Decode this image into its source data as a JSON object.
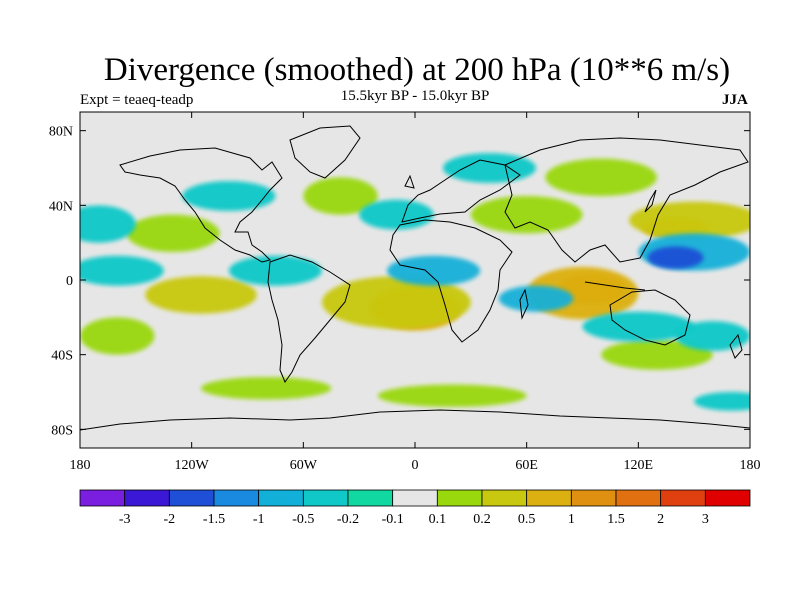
{
  "title": "Divergence (smoothed) at 200 hPa (10**6 m/s)",
  "experiment": "Expt = teaeq-teadp",
  "period": "15.5kyr BP - 15.0kyr BP",
  "season": "JJA",
  "map": {
    "projection": "cylindrical-equidistant",
    "lon_range": [
      -180,
      180
    ],
    "lat_range": [
      -90,
      90
    ],
    "x_ticks": [
      {
        "value": -180,
        "label": "180"
      },
      {
        "value": -120,
        "label": "120W"
      },
      {
        "value": -60,
        "label": "60W"
      },
      {
        "value": 0,
        "label": "0"
      },
      {
        "value": 60,
        "label": "60E"
      },
      {
        "value": 120,
        "label": "120E"
      },
      {
        "value": 180,
        "label": "180"
      }
    ],
    "y_ticks": [
      {
        "value": 80,
        "label": "80N"
      },
      {
        "value": 40,
        "label": "40N"
      },
      {
        "value": 0,
        "label": "0"
      },
      {
        "value": -40,
        "label": "40S"
      },
      {
        "value": -80,
        "label": "80S"
      }
    ],
    "background_color": "#e6e6e6",
    "coastline_color": "#000000",
    "field_regions": [
      {
        "lon": 95,
        "lat": -5,
        "rlon": 18,
        "rlat": 8,
        "level": 12
      },
      {
        "lon": 90,
        "lat": -7,
        "rlon": 30,
        "rlat": 14,
        "level": 10
      },
      {
        "lon": 0,
        "lat": -15,
        "rlon": 25,
        "rlat": 12,
        "level": 10
      },
      {
        "lon": -10,
        "lat": -12,
        "rlon": 40,
        "rlat": 14,
        "level": 9
      },
      {
        "lon": 140,
        "lat": 28,
        "rlon": 18,
        "rlat": 6,
        "level": 10
      },
      {
        "lon": 150,
        "lat": 32,
        "rlon": 35,
        "rlat": 10,
        "level": 9
      },
      {
        "lon": -115,
        "lat": -8,
        "rlon": 30,
        "rlat": 10,
        "level": 9
      },
      {
        "lon": 60,
        "lat": 35,
        "rlon": 30,
        "rlat": 10,
        "level": 8
      },
      {
        "lon": -130,
        "lat": 25,
        "rlon": 25,
        "rlat": 10,
        "level": 8
      },
      {
        "lon": 130,
        "lat": -40,
        "rlon": 30,
        "rlat": 8,
        "level": 8
      },
      {
        "lon": -80,
        "lat": -58,
        "rlon": 35,
        "rlat": 6,
        "level": 8
      },
      {
        "lon": 20,
        "lat": -62,
        "rlon": 40,
        "rlat": 6,
        "level": 8
      },
      {
        "lon": 100,
        "lat": 55,
        "rlon": 30,
        "rlat": 10,
        "level": 8
      },
      {
        "lon": -40,
        "lat": 45,
        "rlon": 20,
        "rlat": 10,
        "level": 8
      },
      {
        "lon": -160,
        "lat": -30,
        "rlon": 20,
        "rlat": 10,
        "level": 8
      },
      {
        "lon": 150,
        "lat": 15,
        "rlon": 30,
        "rlat": 10,
        "level": 4
      },
      {
        "lon": 140,
        "lat": 12,
        "rlon": 15,
        "rlat": 6,
        "level": 2
      },
      {
        "lon": 10,
        "lat": 5,
        "rlon": 25,
        "rlat": 8,
        "level": 4
      },
      {
        "lon": 65,
        "lat": -10,
        "rlon": 20,
        "rlat": 7,
        "level": 4
      },
      {
        "lon": -75,
        "lat": 5,
        "rlon": 25,
        "rlat": 8,
        "level": 5
      },
      {
        "lon": -160,
        "lat": 5,
        "rlon": 25,
        "rlat": 8,
        "level": 5
      },
      {
        "lon": -170,
        "lat": 30,
        "rlon": 20,
        "rlat": 10,
        "level": 5
      },
      {
        "lon": 120,
        "lat": -25,
        "rlon": 30,
        "rlat": 8,
        "level": 5
      },
      {
        "lon": 160,
        "lat": -30,
        "rlon": 20,
        "rlat": 8,
        "level": 5
      },
      {
        "lon": 40,
        "lat": 60,
        "rlon": 25,
        "rlat": 8,
        "level": 5
      },
      {
        "lon": -100,
        "lat": 45,
        "rlon": 25,
        "rlat": 8,
        "level": 5
      },
      {
        "lon": 170,
        "lat": -65,
        "rlon": 20,
        "rlat": 5,
        "level": 5
      },
      {
        "lon": -10,
        "lat": 35,
        "rlon": 20,
        "rlat": 8,
        "level": 5
      }
    ]
  },
  "colorbar": {
    "colors": [
      "#7a1fe0",
      "#3b17d6",
      "#1f4fd6",
      "#1a8ae0",
      "#12b0d8",
      "#10c8c8",
      "#10d8a0",
      "#e6e6e6",
      "#9ad80e",
      "#c8c810",
      "#dcb010",
      "#e09010",
      "#e07010",
      "#e04010",
      "#e00000"
    ],
    "labels": [
      "-3",
      "-2",
      "-1.5",
      "-1",
      "-0.5",
      "-0.2",
      "-0.1",
      "0.1",
      "0.2",
      "0.5",
      "1",
      "1.5",
      "2",
      "3"
    ]
  }
}
